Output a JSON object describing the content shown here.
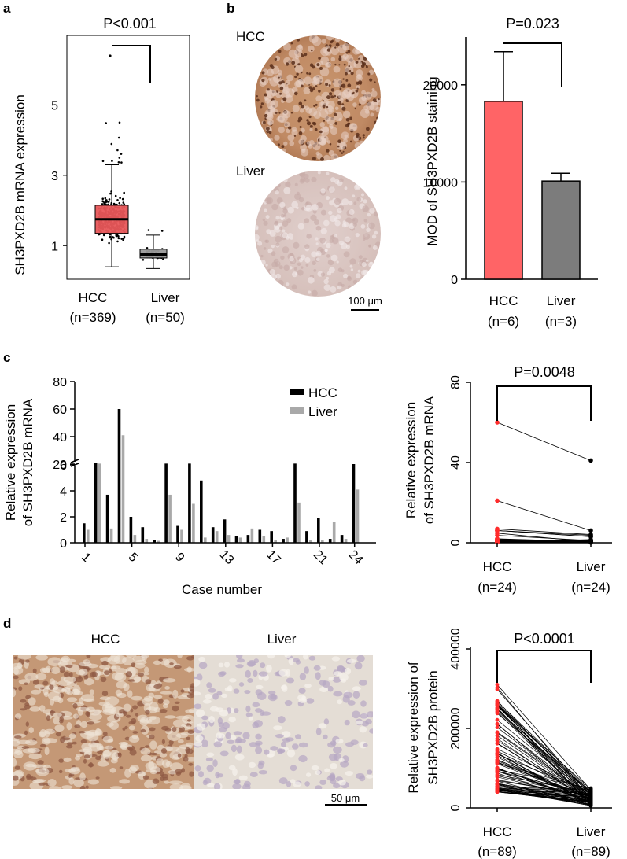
{
  "panels": {
    "a": {
      "letter": "a",
      "chart_data": {
        "type": "boxplot",
        "ylabel": "SH3PXD2B mRNA expression",
        "yticks": [
          1,
          3,
          5
        ],
        "ylim": [
          0,
          7
        ],
        "categories": [
          "HCC",
          "Liver"
        ],
        "category_labels": [
          [
            "HCC",
            "(n=369)"
          ],
          [
            "Liver",
            "(n=50)"
          ]
        ],
        "boxes": [
          {
            "name": "HCC",
            "color": "#e8575a",
            "min": 0.4,
            "q1": 1.35,
            "median": 1.75,
            "q3": 2.15,
            "max": 3.3,
            "outlier_max": 6.4,
            "n_points": 369
          },
          {
            "name": "Liver",
            "color": "#9a9a9a",
            "min": 0.35,
            "q1": 0.65,
            "median": 0.75,
            "q3": 0.9,
            "max": 1.3,
            "n_points": 50
          }
        ],
        "pvalue": "P<0.001"
      }
    },
    "b": {
      "letter": "b",
      "images": [
        {
          "label": "HCC",
          "tissue": "hcc-stained"
        },
        {
          "label": "Liver",
          "tissue": "liver-stained"
        }
      ],
      "scalebar": "100 μm",
      "chart_data": {
        "type": "bar",
        "ylabel": "MOD of SH3PXD2B staining",
        "yticks": [
          0,
          10000,
          20000
        ],
        "ylim": [
          0,
          25000
        ],
        "categories": [
          "HCC",
          "Liver"
        ],
        "category_labels": [
          [
            "HCC",
            "(n=6)"
          ],
          [
            "Liver",
            "(n=3)"
          ]
        ],
        "values": [
          18300,
          10100
        ],
        "errors": [
          5100,
          800
        ],
        "colors": [
          "#ff6466",
          "#7c7c7c"
        ],
        "pvalue": "P=0.023"
      }
    },
    "c": {
      "letter": "c",
      "bar_chart": {
        "type": "bar",
        "ylabel": [
          "Relative expression",
          "of SH3PXD2B mRNA"
        ],
        "xlabel": "Case number",
        "xticks": [
          1,
          5,
          9,
          13,
          17,
          21,
          24
        ],
        "lower_yticks": [
          0,
          2,
          4,
          6
        ],
        "upper_yticks": [
          20,
          40,
          60,
          80
        ],
        "series": [
          {
            "name": "HCC",
            "color": "#000000",
            "values": [
              1.5,
              21,
              3.7,
              60,
              2,
              1.2,
              0.2,
              6.1,
              1.3,
              6.1,
              4.8,
              1.2,
              1.8,
              0.5,
              0.6,
              1,
              0.9,
              0.3,
              6.1,
              0.9,
              1.9,
              0.3,
              0.6,
              6.9
            ]
          },
          {
            "name": "Liver",
            "color": "#a9a9a9",
            "values": [
              1,
              6.1,
              1.1,
              41,
              0.6,
              0.3,
              0.15,
              3.7,
              1,
              3,
              0.4,
              0.9,
              0.6,
              0.4,
              1.1,
              0.5,
              0.2,
              0.4,
              3.1,
              0.2,
              0.2,
              1.6,
              0.3,
              4.1
            ]
          }
        ]
      },
      "paired_chart": {
        "type": "paired-line",
        "ylabel": [
          "Relative expression",
          "of SH3PXD2B mRNA"
        ],
        "yticks": [
          0,
          40,
          80
        ],
        "ylim": [
          0,
          80
        ],
        "category_labels": [
          [
            "HCC",
            "(n=24)"
          ],
          [
            "Liver",
            "(n=24)"
          ]
        ],
        "pvalue": "P=0.0048",
        "hcc_color": "#ff2b2b",
        "liver_color": "#000000",
        "pairs": [
          [
            60,
            41
          ],
          [
            21,
            6.1
          ],
          [
            3.7,
            1.1
          ],
          [
            1.5,
            1
          ],
          [
            2,
            0.6
          ],
          [
            1.2,
            0.3
          ],
          [
            0.2,
            0.15
          ],
          [
            6.1,
            3.7
          ],
          [
            1.3,
            1
          ],
          [
            6.1,
            3
          ],
          [
            4.8,
            0.4
          ],
          [
            1.2,
            0.9
          ],
          [
            1.8,
            0.6
          ],
          [
            0.5,
            0.4
          ],
          [
            0.6,
            1.1
          ],
          [
            1,
            0.5
          ],
          [
            0.9,
            0.2
          ],
          [
            0.3,
            0.4
          ],
          [
            6.1,
            3.1
          ],
          [
            0.9,
            0.2
          ],
          [
            1.9,
            0.2
          ],
          [
            0.3,
            1.6
          ],
          [
            0.6,
            0.3
          ],
          [
            6.9,
            4.1
          ]
        ]
      }
    },
    "d": {
      "letter": "d",
      "images": [
        {
          "label": "HCC",
          "tissue": "hcc-ihc"
        },
        {
          "label": "Liver",
          "tissue": "liver-ihc"
        }
      ],
      "scalebar": "50 μm",
      "paired_chart": {
        "type": "paired-line",
        "ylabel": [
          "Relative expression of",
          "SH3PXD2B protein"
        ],
        "yticks": [
          0,
          200000,
          400000
        ],
        "ylim": [
          0,
          400000
        ],
        "category_labels": [
          [
            "HCC",
            "(n=89)"
          ],
          [
            "Liver",
            "(n=89)"
          ]
        ],
        "pvalue": "P<0.0001",
        "hcc_color": "#ff2b2b",
        "liver_color": "#000000",
        "n_pairs": 89,
        "hcc_range": [
          40000,
          310000
        ],
        "liver_range": [
          5000,
          60000
        ]
      }
    }
  }
}
